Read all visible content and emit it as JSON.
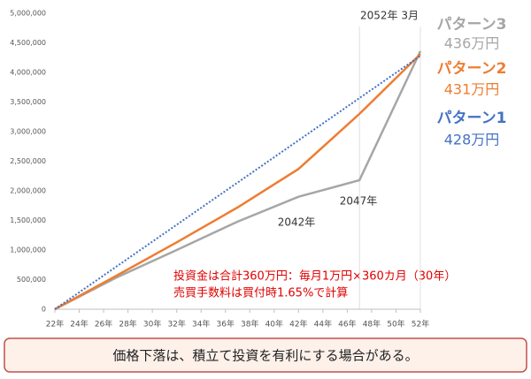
{
  "chart_data": {
    "type": "line",
    "x": [
      22,
      27,
      32,
      37,
      42,
      47,
      52
    ],
    "series": [
      {
        "name": "パターン3",
        "end_label": "436万円",
        "color": "#a6a6a6",
        "dash": false,
        "values": [
          0,
          530000,
          1000000,
          1480000,
          1900000,
          2180000,
          4360000
        ]
      },
      {
        "name": "パターン2",
        "end_label": "431万円",
        "color": "#ed7d31",
        "dash": false,
        "values": [
          0,
          560000,
          1130000,
          1720000,
          2370000,
          3300000,
          4310000
        ]
      },
      {
        "name": "パターン1",
        "end_label": "428万円",
        "color": "#4472c4",
        "dash": true,
        "values": [
          0,
          713000,
          1427000,
          2140000,
          2853000,
          3567000,
          4280000
        ]
      }
    ],
    "xlim": [
      22,
      52
    ],
    "xticks": [
      {
        "value": 22,
        "label": "22年"
      },
      {
        "value": 24,
        "label": "24年"
      },
      {
        "value": 26,
        "label": "26年"
      },
      {
        "value": 28,
        "label": "28年"
      },
      {
        "value": 30,
        "label": "30年"
      },
      {
        "value": 32,
        "label": "32年"
      },
      {
        "value": 34,
        "label": "34年"
      },
      {
        "value": 36,
        "label": "36年"
      },
      {
        "value": 38,
        "label": "38年"
      },
      {
        "value": 40,
        "label": "40年"
      },
      {
        "value": 42,
        "label": "42年"
      },
      {
        "value": 44,
        "label": "44年"
      },
      {
        "value": 46,
        "label": "46年"
      },
      {
        "value": 48,
        "label": "48年"
      },
      {
        "value": 50,
        "label": "50年"
      },
      {
        "value": 52,
        "label": "52年"
      }
    ],
    "ylim": [
      0,
      5000000
    ],
    "yticks": [
      0,
      {
        "value": 500000,
        "label": "500,000"
      },
      {
        "value": 1000000,
        "label": "1,000,000"
      },
      {
        "value": 1500000,
        "label": "1,500,000"
      },
      {
        "value": 2000000,
        "label": "2,000,000"
      },
      {
        "value": 2500000,
        "label": "2,500,000"
      },
      {
        "value": 3000000,
        "label": "3,000,000"
      },
      {
        "value": 3500000,
        "label": "3,500,000"
      },
      {
        "value": 4000000,
        "label": "4,000,000"
      },
      {
        "value": 4500000,
        "label": "4,500,000"
      },
      {
        "value": 5000000,
        "label": "5,000,000"
      }
    ],
    "vlines": [
      47,
      52
    ],
    "annotations": [
      "2052年 3月",
      "2047年",
      "2042年"
    ],
    "note": [
      "投資金は合計360万円：毎月1万円×360カ月（30年）",
      "売買手数料は買付時1.65%で計算"
    ],
    "caption": "価格下落は、積立て投資を有利にする場合がある。"
  }
}
